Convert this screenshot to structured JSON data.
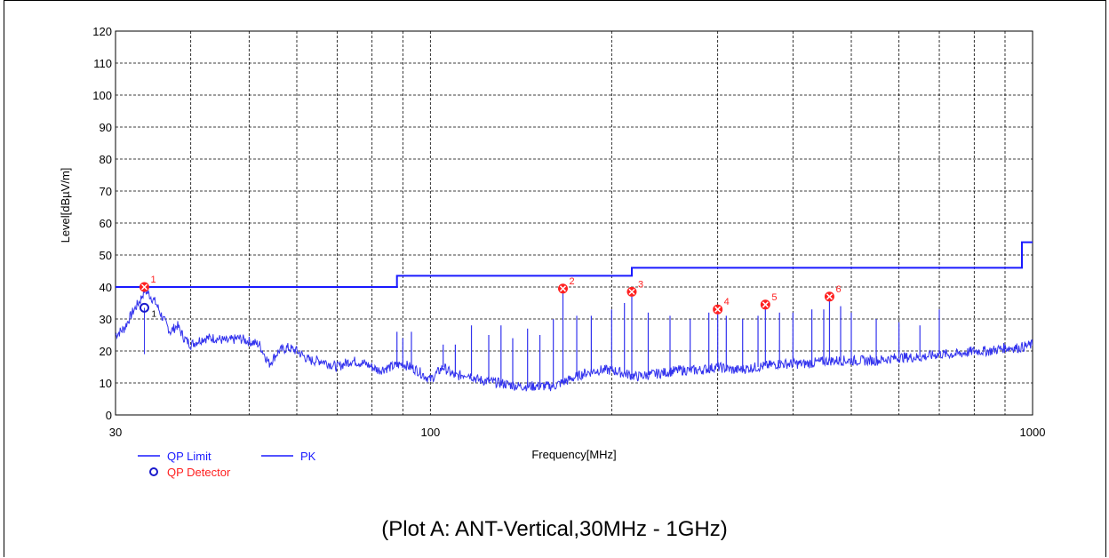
{
  "caption": "(Plot A: ANT-Vertical,30MHz - 1GHz)",
  "chart_data": {
    "type": "line",
    "xlabel": "Frequency[MHz]",
    "ylabel": "Level[dBµV/m]",
    "xscale": "log",
    "xlim": [
      30,
      1000
    ],
    "ylim": [
      0,
      120
    ],
    "x_ticks": [
      30,
      100,
      1000
    ],
    "x_tick_labels": [
      "30",
      "100",
      "1000"
    ],
    "y_ticks": [
      0,
      10,
      20,
      30,
      40,
      50,
      60,
      70,
      80,
      90,
      100,
      110,
      120
    ],
    "y_tick_labels": [
      "0",
      "10",
      "20",
      "30",
      "40",
      "50",
      "60",
      "70",
      "80",
      "90",
      "100",
      "110",
      "120"
    ],
    "grid": true,
    "legend": [
      {
        "label": "QP Limit",
        "marker": "line",
        "color": "#1a1aff"
      },
      {
        "label": "PK",
        "marker": "line",
        "color": "#1a1aff"
      },
      {
        "label": "QP Detector",
        "marker": "circle",
        "color": "#ff2020"
      }
    ],
    "legend_position": "bottom-left",
    "series": [
      {
        "name": "QP Limit",
        "color": "#1a1aff",
        "step": true,
        "x": [
          30,
          88,
          88,
          216,
          216,
          960,
          960,
          1000
        ],
        "y": [
          40,
          40,
          43.5,
          43.5,
          46,
          46,
          54,
          54
        ]
      },
      {
        "name": "PK",
        "color": "#3333ee",
        "x": [
          30,
          31,
          32,
          33,
          33.5,
          34,
          35,
          36,
          37,
          38,
          39,
          40,
          42,
          44,
          46,
          48,
          50,
          52,
          54,
          56,
          58,
          60,
          63,
          66,
          70,
          74,
          78,
          82,
          86,
          90,
          95,
          100,
          105,
          110,
          115,
          120,
          130,
          140,
          150,
          160,
          170,
          180,
          190,
          200,
          220,
          240,
          260,
          280,
          300,
          320,
          350,
          380,
          420,
          460,
          500,
          550,
          600,
          650,
          700,
          750,
          800,
          850,
          900,
          950,
          1000
        ],
        "y": [
          25,
          27,
          32,
          36,
          39,
          38,
          35,
          30,
          26,
          28,
          24,
          22,
          24,
          24,
          23,
          24,
          23,
          22,
          16,
          20,
          21,
          20,
          17,
          17,
          15,
          17,
          16,
          14,
          15,
          16,
          14,
          11,
          15,
          12,
          13,
          11,
          10,
          9,
          9,
          9,
          11,
          13,
          14,
          14,
          12,
          13,
          14,
          14,
          15,
          14,
          15,
          16,
          16,
          17,
          17,
          17,
          18,
          18,
          19,
          19,
          20,
          20,
          21,
          21,
          22
        ]
      }
    ],
    "spikes": {
      "x": [
        35,
        88,
        90,
        93,
        105,
        110,
        117,
        125,
        131,
        137,
        145,
        152,
        160,
        166,
        175,
        185,
        200,
        210,
        216,
        230,
        250,
        270,
        290,
        300,
        310,
        330,
        350,
        360,
        380,
        400,
        430,
        450,
        460,
        480,
        500,
        550,
        600,
        650,
        700
      ],
      "y": [
        35,
        26,
        24,
        26,
        22,
        22,
        28,
        25,
        28,
        24,
        27,
        25,
        30,
        39,
        31,
        31,
        33,
        35,
        38,
        32,
        31,
        30,
        32,
        33,
        31,
        30,
        31,
        34,
        32,
        32,
        33,
        33,
        37,
        34,
        32,
        30,
        29,
        28,
        33
      ]
    },
    "markers": [
      {
        "label": "1",
        "x": 33.5,
        "y": 40
      },
      {
        "label": "2",
        "x": 166,
        "y": 39.5
      },
      {
        "label": "3",
        "x": 216,
        "y": 38.5
      },
      {
        "label": "4",
        "x": 300,
        "y": 33
      },
      {
        "label": "5",
        "x": 360,
        "y": 34.5
      },
      {
        "label": "6",
        "x": 460,
        "y": 37
      }
    ],
    "qp_detector_points": [
      {
        "label": "1",
        "x": 33.5,
        "y": 33.5
      }
    ],
    "colors": {
      "marker": "#ff2020",
      "line": "#1a1aff",
      "grid": "#000000"
    }
  }
}
